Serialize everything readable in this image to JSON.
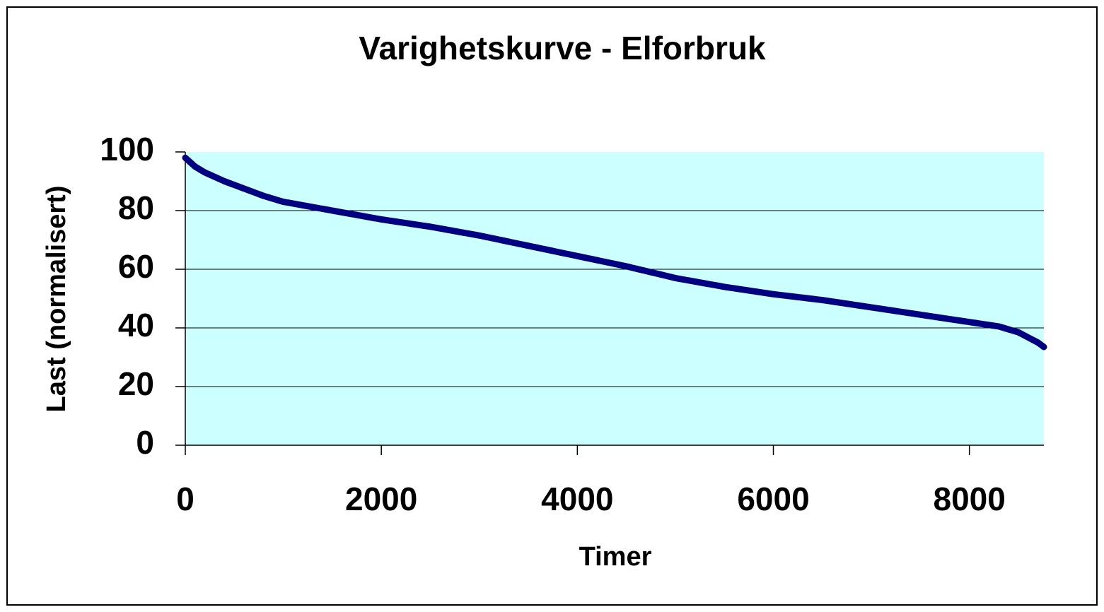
{
  "chart_data": {
    "type": "line",
    "title": "Varighetskurve - Elforbruk",
    "x_label": "Timer",
    "y_label": "Last (normalisert)",
    "x": [
      0,
      100,
      200,
      400,
      600,
      800,
      1000,
      1500,
      2000,
      2500,
      3000,
      3500,
      4000,
      4500,
      5000,
      5500,
      6000,
      6500,
      7000,
      7500,
      8000,
      8300,
      8500,
      8700,
      8760
    ],
    "series": [
      {
        "name": "Last",
        "color": "#000080",
        "values": [
          98,
          95,
          93,
          90,
          87.5,
          85,
          83,
          80,
          77,
          74.5,
          71.5,
          68,
          64.5,
          61,
          57,
          54,
          51.5,
          49.5,
          47,
          44.5,
          42,
          40.5,
          38.5,
          35,
          33.5
        ]
      }
    ],
    "xlim": [
      0,
      8760
    ],
    "xticks": [
      0,
      2000,
      4000,
      6000,
      8000
    ],
    "ylim": [
      0,
      100
    ],
    "yticks": [
      0,
      20,
      40,
      60,
      80,
      100
    ],
    "grid": true,
    "plot_background": "#ccffff"
  }
}
